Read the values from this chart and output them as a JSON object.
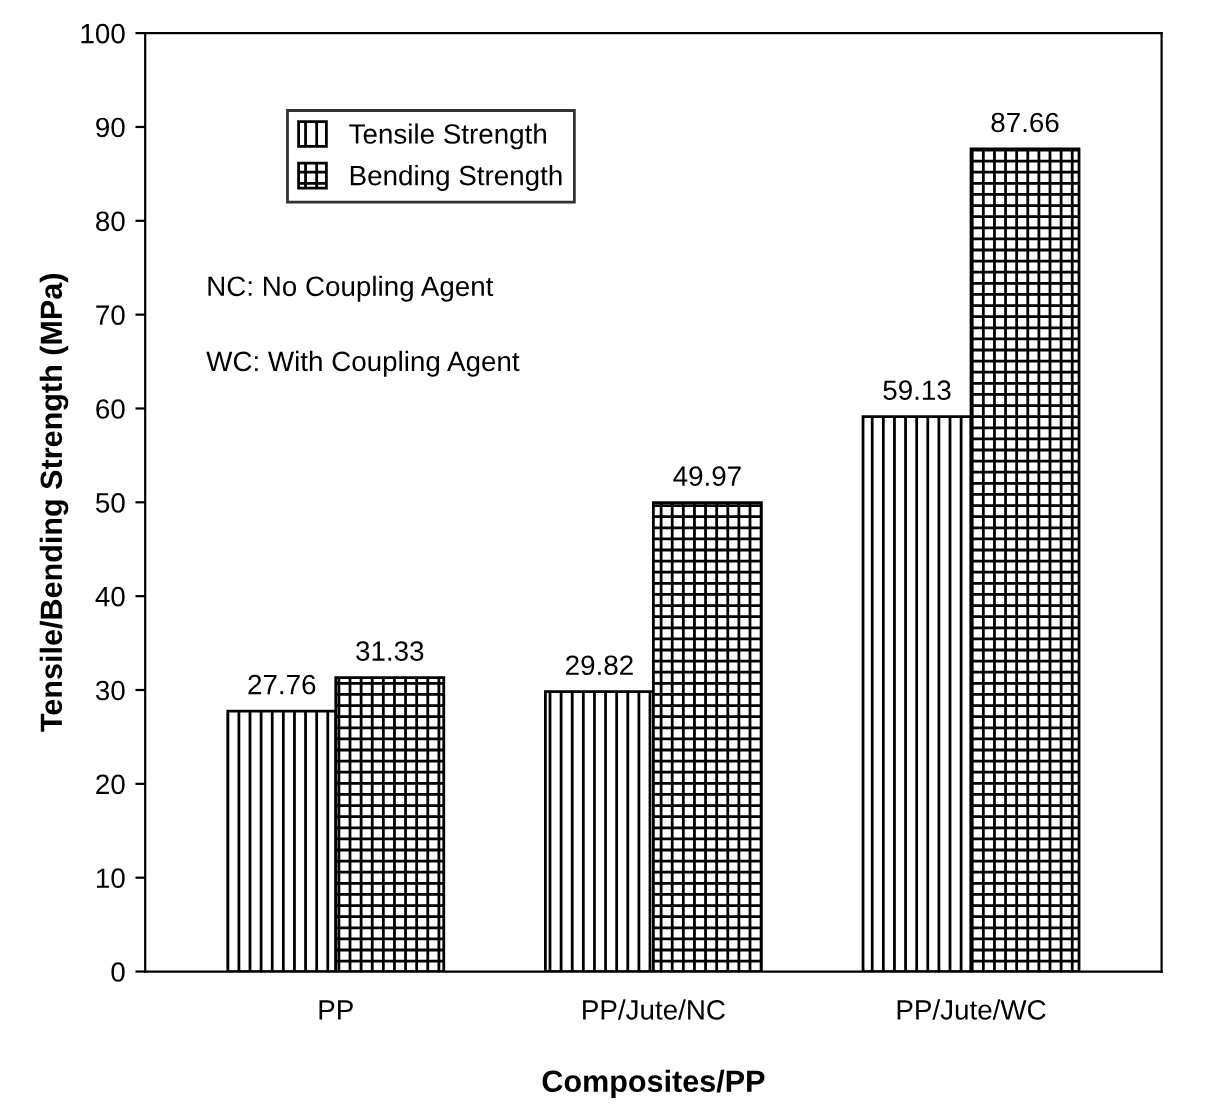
{
  "chart_data": {
    "type": "bar",
    "xlabel": "Composites/PP",
    "ylabel": "Tensile/Bending Strength (MPa)",
    "categories": [
      "PP",
      "PP/Jute/NC",
      "PP/Jute/WC"
    ],
    "series": [
      {
        "name": "Tensile Strength",
        "color": "#000000",
        "values": [
          27.76,
          29.82,
          59.13
        ]
      },
      {
        "name": "Bending Strength",
        "color": "#000000",
        "values": [
          31.33,
          49.97,
          87.66
        ]
      }
    ],
    "ylim": [
      0,
      100
    ],
    "yticks": [
      0,
      10,
      20,
      30,
      40,
      50,
      60,
      70,
      80,
      90,
      100
    ],
    "data_labels": true,
    "grid": false,
    "legend": "top left",
    "annotations": [
      "NC: No Coupling Agent",
      "WC: With Coupling Agent"
    ]
  }
}
